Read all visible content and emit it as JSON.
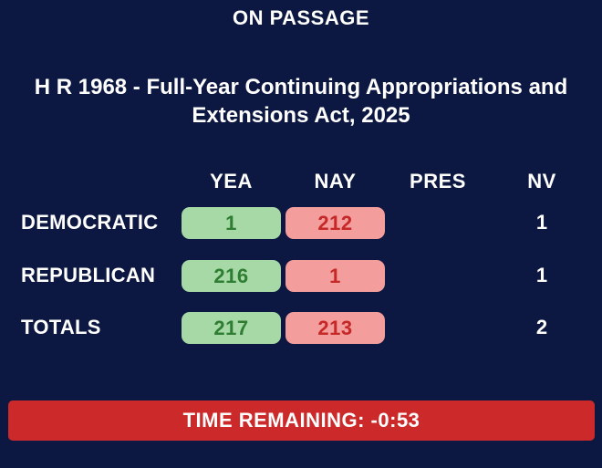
{
  "header": {
    "label": "ON PASSAGE"
  },
  "bill": {
    "title_line1": "H R 1968 - Full-Year Continuing Appropriations and",
    "title_line2": "Extensions Act, 2025"
  },
  "columns": {
    "yea": "YEA",
    "nay": "NAY",
    "pres": "PRES",
    "nv": "NV"
  },
  "rows": [
    {
      "label": "DEMOCRATIC",
      "yea": "1",
      "nay": "212",
      "pres": "",
      "nv": "1"
    },
    {
      "label": "REPUBLICAN",
      "yea": "216",
      "nay": "1",
      "pres": "",
      "nv": "1"
    },
    {
      "label": "TOTALS",
      "yea": "217",
      "nay": "213",
      "pres": "",
      "nv": "2"
    }
  ],
  "timer": {
    "text": "TIME REMAINING: -0:53"
  },
  "colors": {
    "background": "#0d1842",
    "yea_pill": "#a6d9a6",
    "yea_text": "#2e7d32",
    "nay_pill": "#f39d9d",
    "nay_text": "#c62828",
    "timer_bar": "#cc2a2a"
  }
}
